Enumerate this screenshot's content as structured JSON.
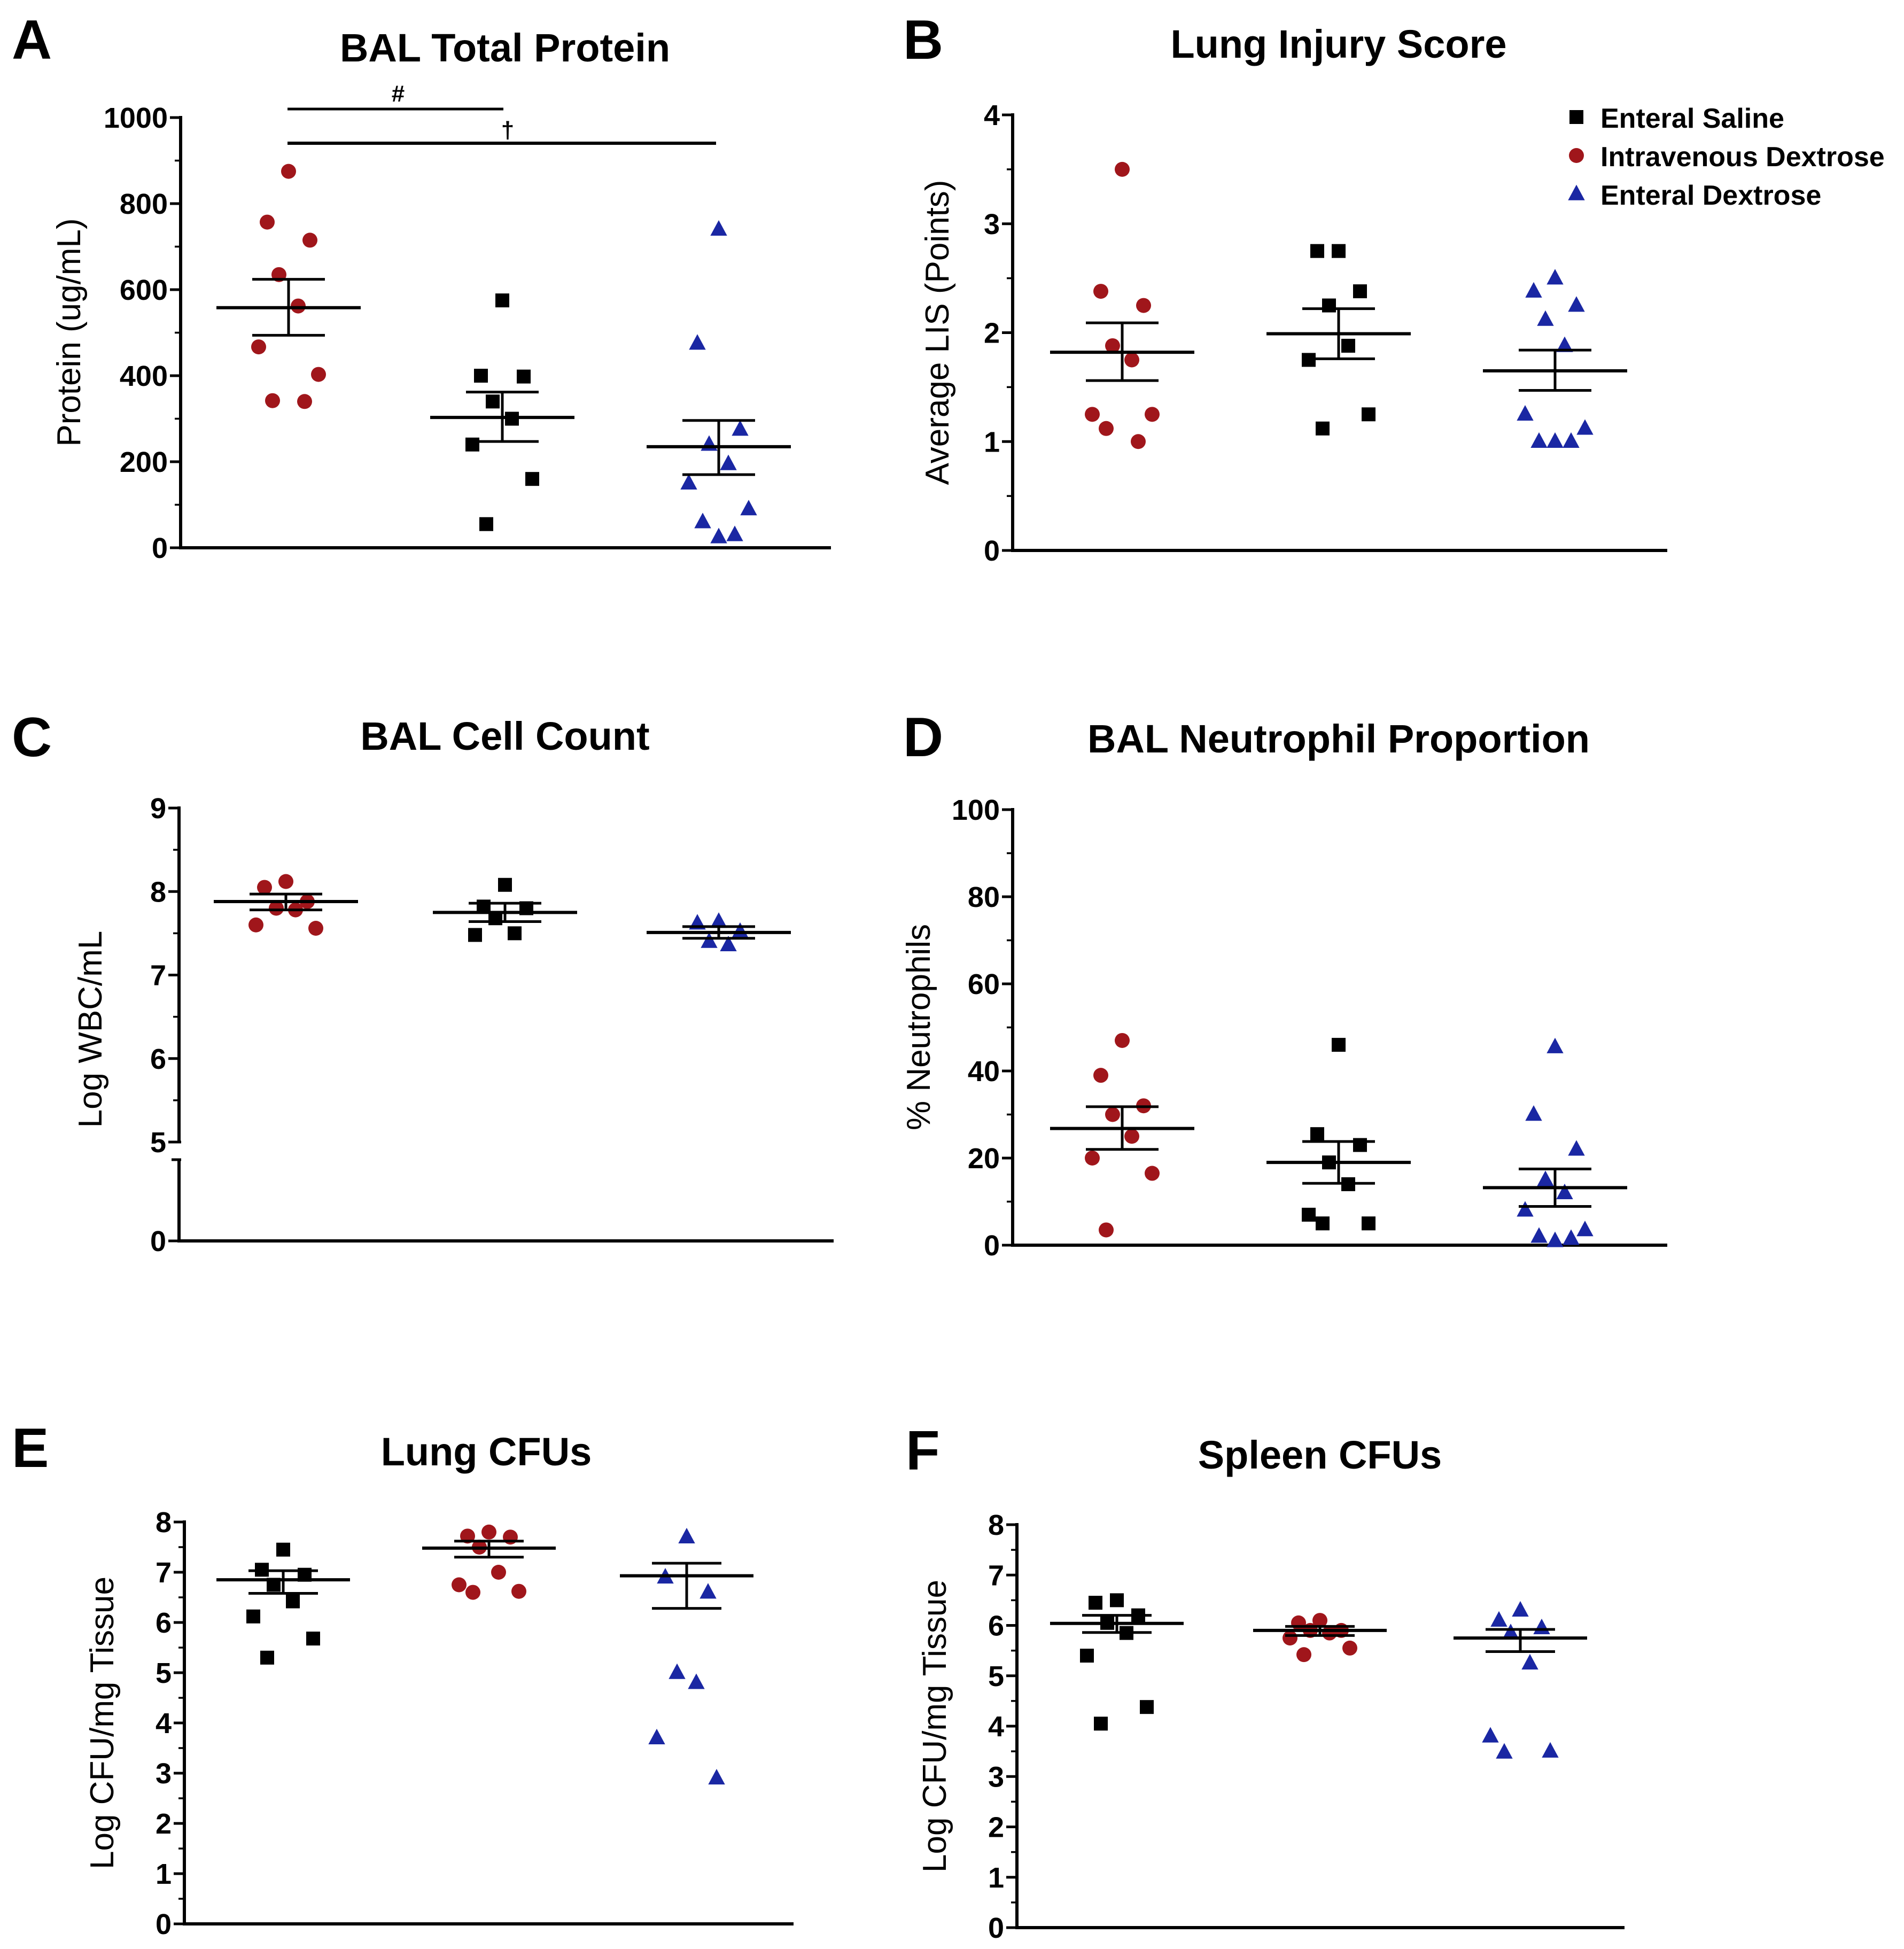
{
  "figure": {
    "colors": {
      "enteral_saline": "#000000",
      "intravenous_dextrose": "#a0161b",
      "enteral_dextrose": "#1a27a3"
    },
    "legend": {
      "items": [
        {
          "label": "Enteral Saline",
          "marker": "square",
          "color": "#000000"
        },
        {
          "label": "Intravenous Dextrose",
          "marker": "circle",
          "color": "#a0161b"
        },
        {
          "label": "Enteral Dextrose",
          "marker": "triangle",
          "color": "#1a27a3"
        }
      ]
    }
  },
  "chart_data": [
    {
      "panel": "A",
      "type": "scatter",
      "title": "BAL Total  Protein",
      "ylabel": "Protein (ug/mL)",
      "ylim": [
        0,
        1000
      ],
      "yticks": [
        "0",
        "200",
        "400",
        "600",
        "800",
        "1000"
      ],
      "annotations": [
        "#",
        "†"
      ],
      "groups": [
        {
          "name": "Intravenous Dextrose",
          "marker": "circle",
          "color": "#a0161b",
          "values": [
            875,
            757,
            715,
            635,
            562,
            467,
            403,
            342,
            340
          ],
          "mean": 558,
          "sem_low": 494,
          "sem_high": 624
        },
        {
          "name": "Enteral Saline",
          "marker": "square",
          "color": "#000000",
          "values": [
            575,
            400,
            398,
            340,
            300,
            240,
            160,
            55
          ],
          "mean": 303,
          "sem_low": 247,
          "sem_high": 362
        },
        {
          "name": "Enteral Dextrose",
          "marker": "triangle",
          "color": "#1a27a3",
          "values": [
            740,
            475,
            275,
            240,
            195,
            150,
            90,
            60,
            30,
            25
          ],
          "mean": 235,
          "sem_low": 170,
          "sem_high": 296
        }
      ]
    },
    {
      "panel": "B",
      "type": "scatter",
      "title": "Lung Injury Score",
      "ylabel": "Average LIS (Points)",
      "ylim": [
        0,
        4
      ],
      "yticks": [
        "0",
        "1",
        "2",
        "3",
        "4"
      ],
      "groups": [
        {
          "name": "Intravenous Dextrose",
          "marker": "circle",
          "color": "#a0161b",
          "values": [
            3.5,
            2.38,
            2.25,
            1.88,
            1.75,
            1.25,
            1.25,
            1.12,
            1.0
          ],
          "mean": 1.82,
          "sem_low": 1.56,
          "sem_high": 2.09
        },
        {
          "name": "Enteral Saline",
          "marker": "square",
          "color": "#000000",
          "values": [
            2.75,
            2.75,
            2.38,
            2.25,
            1.88,
            1.75,
            1.25,
            1.12
          ],
          "mean": 1.99,
          "sem_low": 1.76,
          "sem_high": 2.22
        },
        {
          "name": "Enteral Dextrose",
          "marker": "triangle",
          "color": "#1a27a3",
          "values": [
            2.5,
            2.38,
            2.25,
            2.12,
            1.88,
            1.25,
            1.12,
            1.0,
            1.0,
            1.0
          ],
          "mean": 1.65,
          "sem_low": 1.47,
          "sem_high": 1.84
        }
      ]
    },
    {
      "panel": "C",
      "type": "scatter",
      "title": "BAL Cell Count",
      "ylabel": "Log WBC/mL",
      "ylim": [
        0,
        9
      ],
      "yticks": [
        "0",
        "5",
        "6",
        "7",
        "8",
        "9"
      ],
      "axis_break": [
        0,
        5
      ],
      "groups": [
        {
          "name": "Intravenous Dextrose",
          "marker": "circle",
          "color": "#a0161b",
          "values": [
            8.12,
            8.05,
            7.88,
            7.8,
            7.78,
            7.6,
            7.56
          ],
          "mean": 7.88,
          "sem_low": 7.78,
          "sem_high": 7.97
        },
        {
          "name": "Enteral Saline",
          "marker": "square",
          "color": "#000000",
          "values": [
            8.08,
            7.82,
            7.8,
            7.68,
            7.5,
            7.48
          ],
          "mean": 7.75,
          "sem_low": 7.64,
          "sem_high": 7.86
        },
        {
          "name": "Enteral Dextrose",
          "marker": "triangle",
          "color": "#1a27a3",
          "values": [
            7.64,
            7.62,
            7.52,
            7.4,
            7.36
          ],
          "mean": 7.51,
          "sem_low": 7.44,
          "sem_high": 7.58
        }
      ]
    },
    {
      "panel": "D",
      "type": "scatter",
      "title": "BAL Neutrophil Proportion",
      "ylabel": "% Neutrophils",
      "ylim": [
        0,
        100
      ],
      "yticks": [
        "0",
        "20",
        "40",
        "60",
        "80",
        "100"
      ],
      "groups": [
        {
          "name": "Intravenous Dextrose",
          "marker": "circle",
          "color": "#a0161b",
          "values": [
            47,
            39,
            32,
            30,
            25,
            20,
            16.5,
            3.5
          ],
          "mean": 26.8,
          "sem_low": 22,
          "sem_high": 31.8
        },
        {
          "name": "Enteral Saline",
          "marker": "square",
          "color": "#000000",
          "values": [
            46,
            25.5,
            23,
            19,
            14,
            7,
            5,
            5
          ],
          "mean": 19,
          "sem_low": 14.2,
          "sem_high": 23.8
        },
        {
          "name": "Enteral Dextrose",
          "marker": "triangle",
          "color": "#1a27a3",
          "values": [
            45.5,
            30,
            22,
            15,
            12,
            8,
            3.5,
            2,
            1.5,
            1
          ],
          "mean": 13.2,
          "sem_low": 8.9,
          "sem_high": 17.5
        }
      ]
    },
    {
      "panel": "E",
      "type": "scatter",
      "title": "Lung CFUs",
      "ylabel": "Log CFU/mg Tissue",
      "ylim": [
        0,
        8
      ],
      "yticks": [
        "0",
        "1",
        "2",
        "3",
        "4",
        "5",
        "6",
        "7",
        "8"
      ],
      "groups": [
        {
          "name": "Enteral Saline",
          "marker": "square",
          "color": "#000000",
          "values": [
            7.45,
            7.05,
            6.95,
            6.75,
            6.42,
            6.12,
            5.68,
            5.3
          ],
          "mean": 6.85,
          "sem_low": 6.58,
          "sem_high": 7.03
        },
        {
          "name": "Intravenous Dextrose",
          "marker": "circle",
          "color": "#a0161b",
          "values": [
            7.8,
            7.7,
            7.72,
            7.5,
            7.0,
            6.75,
            6.6,
            6.62
          ],
          "mean": 7.48,
          "sem_low": 7.3,
          "sem_high": 7.62
        },
        {
          "name": "Enteral Dextrose",
          "marker": "triangle",
          "color": "#1a27a3",
          "values": [
            7.7,
            6.9,
            6.6,
            5.0,
            4.8,
            3.7,
            2.9
          ],
          "mean": 6.93,
          "sem_low": 6.28,
          "sem_high": 7.18
        }
      ]
    },
    {
      "panel": "F",
      "type": "scatter",
      "title": "Spleen CFUs",
      "ylabel": "Log CFU/mg Tissue",
      "ylim": [
        0,
        8
      ],
      "yticks": [
        "0",
        "1",
        "2",
        "3",
        "4",
        "5",
        "6",
        "7",
        "8"
      ],
      "groups": [
        {
          "name": "Enteral Saline",
          "marker": "square",
          "color": "#000000",
          "values": [
            6.5,
            6.45,
            6.2,
            6.05,
            5.85,
            5.4,
            4.38,
            4.05
          ],
          "mean": 6.04,
          "sem_low": 5.86,
          "sem_high": 6.2
        },
        {
          "name": "Intravenous Dextrose",
          "marker": "circle",
          "color": "#a0161b",
          "values": [
            6.1,
            6.05,
            5.9,
            5.9,
            5.85,
            5.75,
            5.55,
            5.42
          ],
          "mean": 5.9,
          "sem_low": 5.8,
          "sem_high": 5.98
        },
        {
          "name": "Enteral Dextrose",
          "marker": "triangle",
          "color": "#1a27a3",
          "values": [
            6.3,
            6.1,
            5.95,
            5.85,
            5.25,
            3.8,
            3.5,
            3.48
          ],
          "mean": 5.75,
          "sem_low": 5.48,
          "sem_high": 5.92
        }
      ]
    }
  ]
}
